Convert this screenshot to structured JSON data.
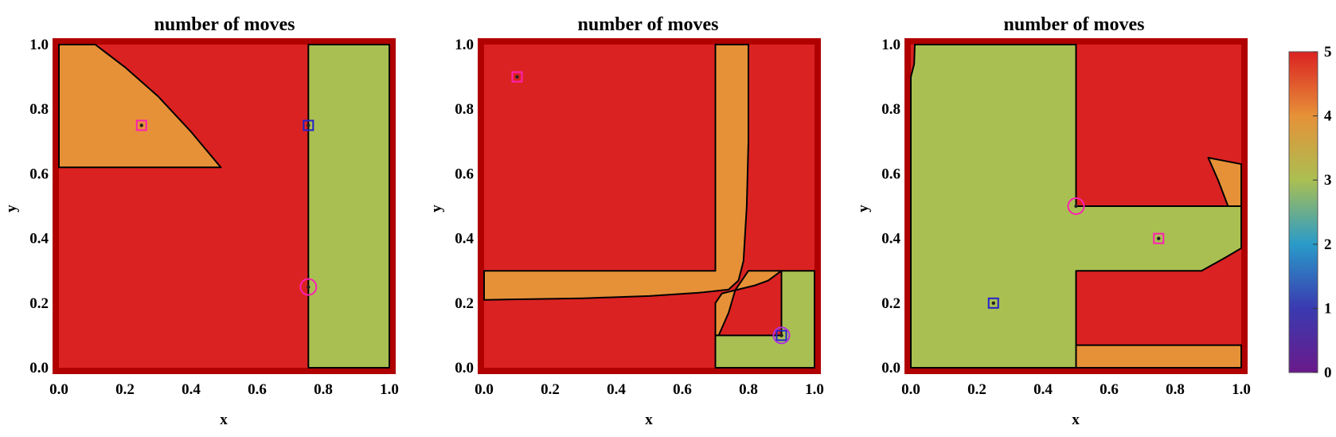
{
  "colors": {
    "frame": "#b00000",
    "value_5": "#db2222",
    "value_4": "#e69138",
    "value_3": "#aabf52",
    "boundary": "#000000",
    "marker_magenta": "#ff1fb4",
    "marker_blue": "#2222cc",
    "marker_purple": "#b030e0"
  },
  "colorbar": {
    "min": 0,
    "max": 5,
    "tick_labels": [
      "0",
      "1",
      "2",
      "3",
      "4",
      "5"
    ],
    "stops": [
      "#6a1a8a",
      "#3a3ab0",
      "#2a9bc9",
      "#aabf52",
      "#e69138",
      "#db2222"
    ]
  },
  "chart_data": [
    {
      "type": "heatmap",
      "title": "number of moves",
      "xlabel": "x",
      "ylabel": "y",
      "xlim": [
        0,
        1
      ],
      "ylim": [
        0,
        1
      ],
      "x_ticks": [
        "0.0",
        "0.2",
        "0.4",
        "0.6",
        "0.8",
        "1.0"
      ],
      "y_ticks": [
        "0.0",
        "0.2",
        "0.4",
        "0.6",
        "0.8",
        "1.0"
      ],
      "background_value": 5,
      "regions": [
        {
          "value": 4,
          "polygon": [
            [
              0,
              0.62
            ],
            [
              0,
              1
            ],
            [
              0.11,
              1
            ],
            [
              0.2,
              0.93
            ],
            [
              0.3,
              0.84
            ],
            [
              0.4,
              0.73
            ],
            [
              0.49,
              0.62
            ]
          ]
        },
        {
          "value": 3,
          "polygon": [
            [
              0.755,
              0
            ],
            [
              0.755,
              1
            ],
            [
              1,
              1
            ],
            [
              1,
              0
            ]
          ]
        }
      ],
      "markers": [
        {
          "shape": "square",
          "color": "magenta",
          "x": 0.25,
          "y": 0.75
        },
        {
          "shape": "square",
          "color": "blue",
          "x": 0.755,
          "y": 0.75
        },
        {
          "shape": "circle",
          "color": "magenta",
          "x": 0.755,
          "y": 0.25
        }
      ]
    },
    {
      "type": "heatmap",
      "title": "number of moves",
      "xlabel": "x",
      "ylabel": "y",
      "xlim": [
        0,
        1
      ],
      "ylim": [
        0,
        1
      ],
      "x_ticks": [
        "0.0",
        "0.2",
        "0.4",
        "0.6",
        "0.8",
        "1.0"
      ],
      "y_ticks": [
        "0.0",
        "0.2",
        "0.4",
        "0.6",
        "0.8",
        "1.0"
      ],
      "background_value": 5,
      "regions": [
        {
          "value": 4,
          "polygon": [
            [
              0.7,
              1
            ],
            [
              0.7,
              0.3
            ],
            [
              0,
              0.3
            ],
            [
              0,
              0.21
            ],
            [
              0.3,
              0.215
            ],
            [
              0.5,
              0.222
            ],
            [
              0.65,
              0.232
            ],
            [
              0.74,
              0.242
            ],
            [
              0.77,
              0.27
            ],
            [
              0.785,
              0.33
            ],
            [
              0.795,
              0.5
            ],
            [
              0.8,
              0.7
            ],
            [
              0.8,
              1
            ]
          ]
        },
        {
          "value": 4,
          "polygon": [
            [
              0.7,
              0.2
            ],
            [
              0.7,
              0.1
            ],
            [
              0.71,
              0.1
            ],
            [
              0.74,
              0.17
            ],
            [
              0.76,
              0.24
            ],
            [
              0.72,
              0.23
            ]
          ]
        },
        {
          "value": 4,
          "polygon": [
            [
              0.76,
              0.24
            ],
            [
              0.8,
              0.3
            ],
            [
              0.9,
              0.3
            ],
            [
              0.86,
              0.27
            ],
            [
              0.82,
              0.255
            ]
          ]
        },
        {
          "value": 3,
          "polygon": [
            [
              0.7,
              0
            ],
            [
              0.7,
              0.1
            ],
            [
              0.9,
              0.1
            ],
            [
              0.9,
              0.3
            ],
            [
              1,
              0.3
            ],
            [
              1,
              0
            ]
          ]
        }
      ],
      "markers": [
        {
          "shape": "square",
          "color": "magenta",
          "x": 0.1,
          "y": 0.9
        },
        {
          "shape": "square",
          "color": "blue",
          "x": 0.9,
          "y": 0.1
        },
        {
          "shape": "circle",
          "color": "purple",
          "x": 0.9,
          "y": 0.1
        }
      ]
    },
    {
      "type": "heatmap",
      "title": "number of moves",
      "xlabel": "x",
      "ylabel": "y",
      "xlim": [
        0,
        1
      ],
      "ylim": [
        0,
        1
      ],
      "x_ticks": [
        "0.0",
        "0.2",
        "0.4",
        "0.6",
        "0.8",
        "1.0"
      ],
      "y_ticks": [
        "0.0",
        "0.2",
        "0.4",
        "0.6",
        "0.8",
        "1.0"
      ],
      "background_value": 5,
      "regions": [
        {
          "value": 3,
          "polygon": [
            [
              0,
              0
            ],
            [
              0,
              0.9
            ],
            [
              0.01,
              0.94
            ],
            [
              0.012,
              1
            ],
            [
              0.5,
              1
            ],
            [
              0.5,
              0.5
            ],
            [
              1,
              0.5
            ],
            [
              1,
              0.37
            ],
            [
              0.95,
              0.34
            ],
            [
              0.88,
              0.3
            ],
            [
              0.5,
              0.3
            ],
            [
              0.5,
              0
            ]
          ]
        },
        {
          "value": 4,
          "polygon": [
            [
              0.9,
              0.65
            ],
            [
              1,
              0.63
            ],
            [
              1,
              0.5
            ],
            [
              0.96,
              0.5
            ],
            [
              0.93,
              0.58
            ]
          ]
        },
        {
          "value": 4,
          "polygon": [
            [
              0.5,
              0
            ],
            [
              0.5,
              0.07
            ],
            [
              1,
              0.07
            ],
            [
              1,
              0
            ]
          ]
        }
      ],
      "markers": [
        {
          "shape": "square",
          "color": "blue",
          "x": 0.25,
          "y": 0.2
        },
        {
          "shape": "square",
          "color": "magenta",
          "x": 0.75,
          "y": 0.4
        },
        {
          "shape": "circle",
          "color": "magenta",
          "x": 0.5,
          "y": 0.5
        }
      ]
    }
  ]
}
